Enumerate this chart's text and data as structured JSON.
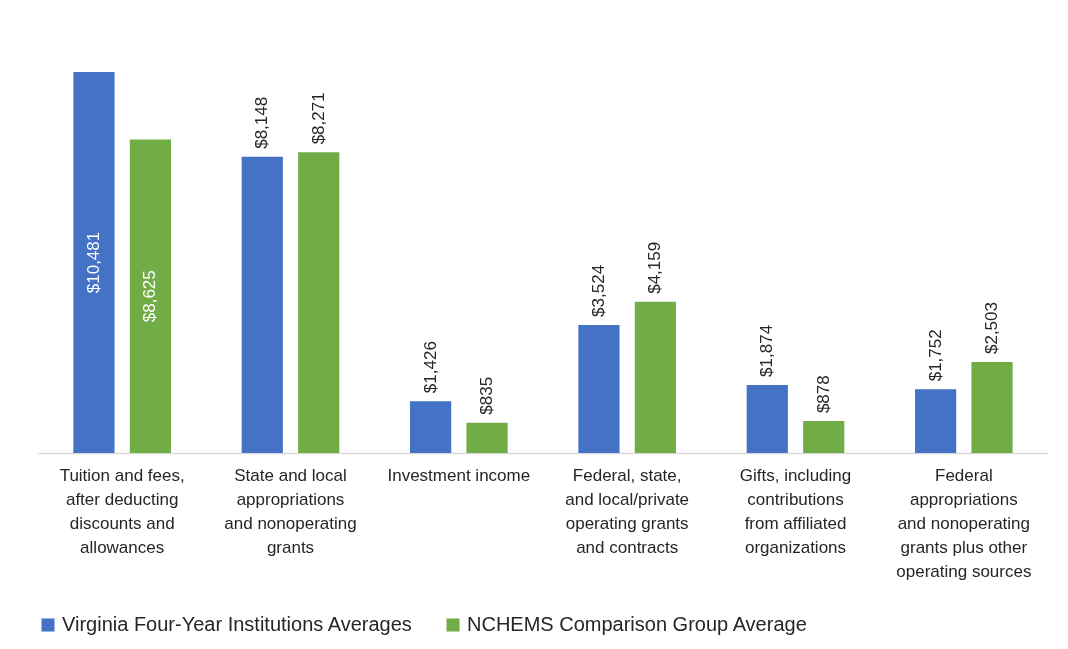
{
  "chart_data": {
    "type": "bar",
    "categories": [
      "Tuition and fees, after deducting discounts and allowances",
      "State and local appropriations and nonoperating grants",
      "Investment income",
      "Federal, state, and local/private operating grants and contracts",
      "Gifts, including contributions from affiliated organizations",
      "Federal appropriations and nonoperating grants plus other operating sources"
    ],
    "series": [
      {
        "name": "Virginia Four-Year Institutions Averages",
        "color": "#4472c4",
        "values": [
          10481,
          8148,
          1426,
          3524,
          1874,
          1752
        ],
        "value_labels": [
          "$10,481",
          "$8,148",
          "$1,426",
          "$3,524",
          "$1,874",
          "$1,752"
        ]
      },
      {
        "name": "NCHEMS Comparison Group Average",
        "color": "#70ad47",
        "values": [
          8625,
          8271,
          835,
          4159,
          878,
          2503
        ],
        "value_labels": [
          "$8,625",
          "$8,271",
          "$835",
          "$4,159",
          "$878",
          "$2,503"
        ]
      }
    ],
    "legend": "bottom"
  }
}
